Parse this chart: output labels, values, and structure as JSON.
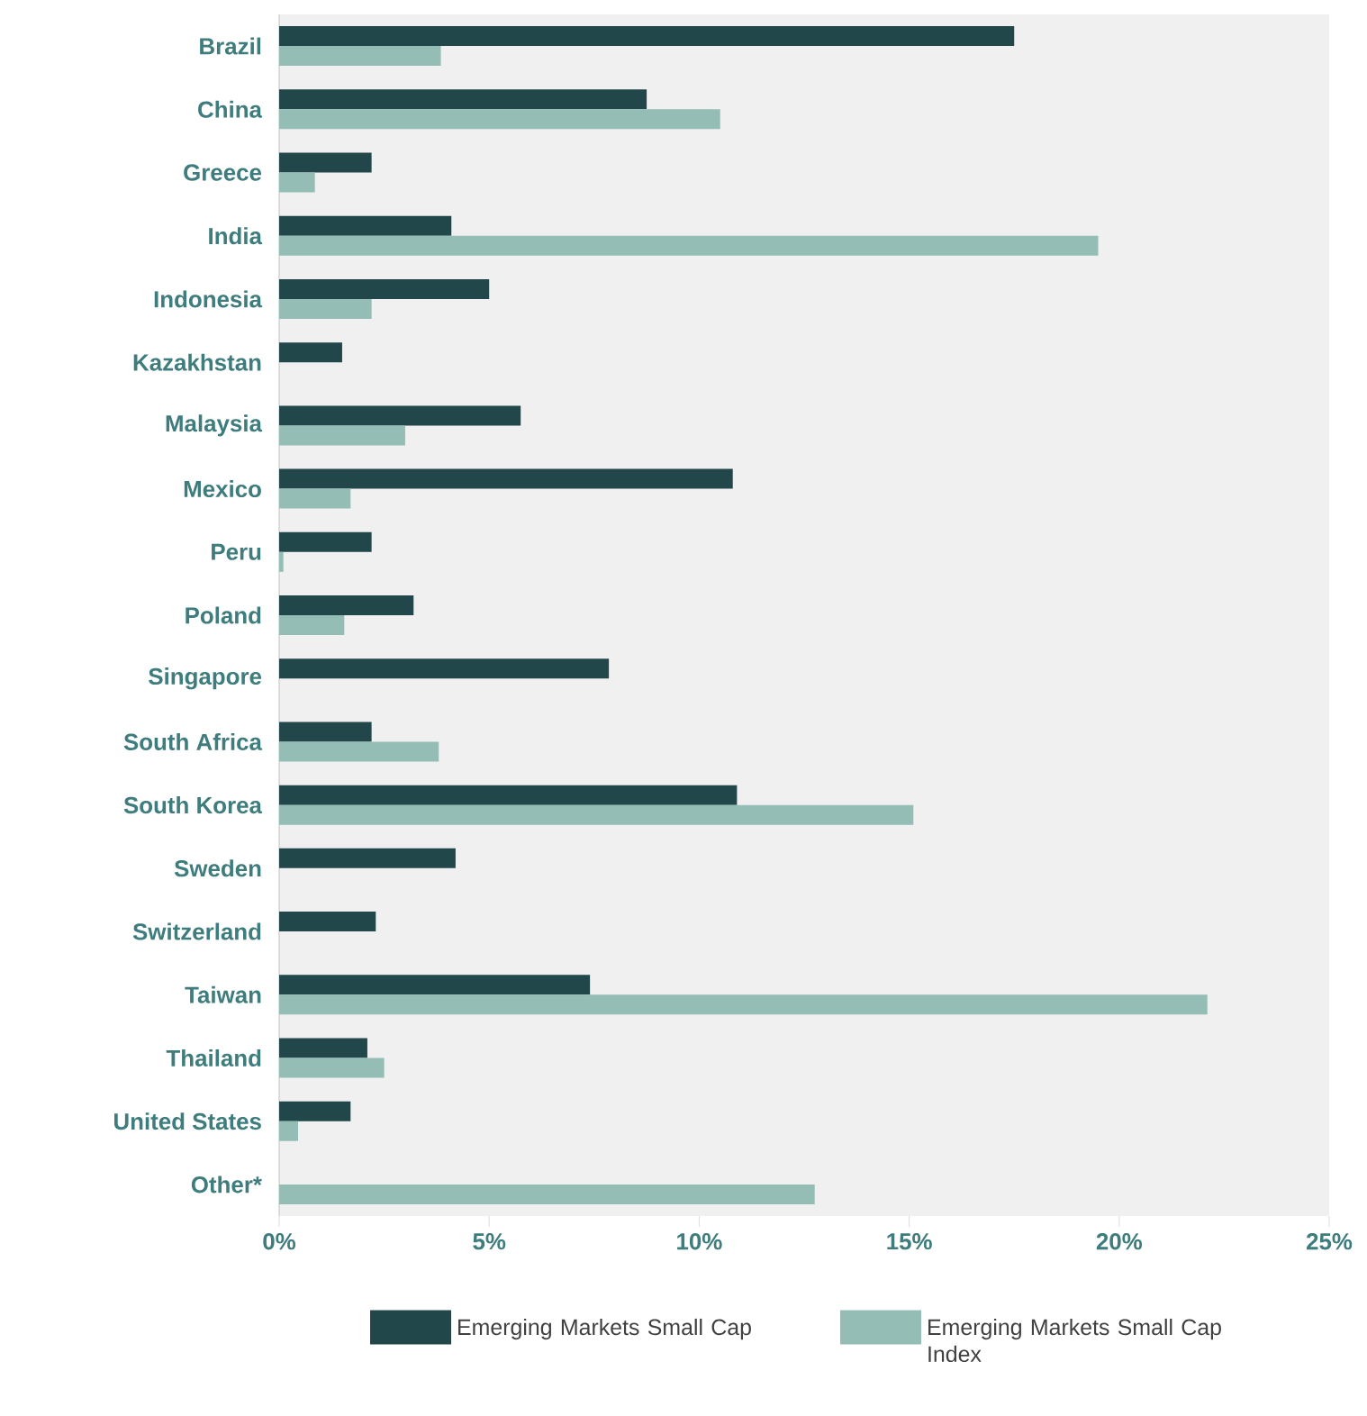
{
  "chart_data": {
    "type": "bar",
    "orientation": "horizontal",
    "categories": [
      "Brazil",
      "China",
      "Greece",
      "India",
      "Indonesia",
      "Kazakhstan",
      "Malaysia",
      "Mexico",
      "Peru",
      "Poland",
      "Singapore",
      "South Africa",
      "South Korea",
      "Sweden",
      "Switzerland",
      "Taiwan",
      "Thailand",
      "United States",
      "Other*"
    ],
    "series": [
      {
        "name": "Emerging Markets Small Cap",
        "color": "#22474a",
        "values": [
          17.5,
          8.75,
          2.2,
          4.1,
          5.0,
          1.5,
          5.75,
          10.8,
          2.2,
          3.2,
          7.85,
          2.2,
          10.9,
          4.2,
          2.3,
          7.4,
          2.1,
          1.7,
          null
        ]
      },
      {
        "name": "Emerging Markets Small Cap Index",
        "color": "#93bdb5",
        "values": [
          3.85,
          10.5,
          0.85,
          19.5,
          2.2,
          null,
          3.0,
          1.7,
          0.1,
          1.55,
          null,
          3.8,
          15.1,
          null,
          null,
          22.1,
          2.5,
          0.45,
          12.75
        ]
      }
    ],
    "xlim": [
      0,
      25
    ],
    "xticks": [
      {
        "value": 0,
        "label": "0%"
      },
      {
        "value": 5,
        "label": "5%"
      },
      {
        "value": 10,
        "label": "10%"
      },
      {
        "value": 15,
        "label": "15%"
      },
      {
        "value": 20,
        "label": "20%"
      },
      {
        "value": 25,
        "label": "25%"
      }
    ],
    "grid": false,
    "legend": "bottom"
  }
}
